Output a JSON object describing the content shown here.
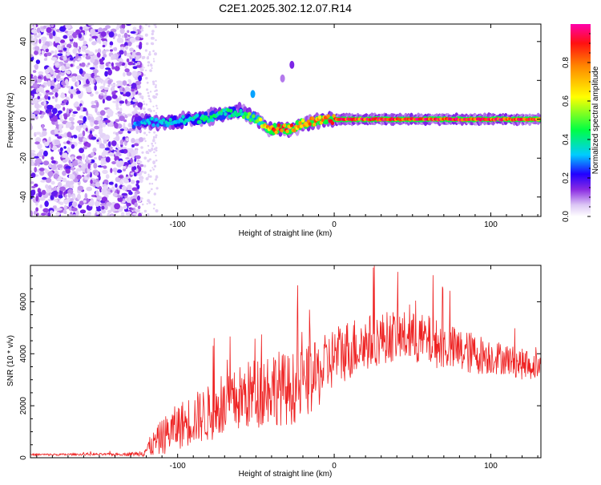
{
  "title": "C2E1.2025.302.12.07.R14",
  "chart_data": [
    {
      "type": "heatmap",
      "xlabel": "Height of straight line (km)",
      "ylabel": "Frequency (Hz)",
      "xlim": [
        -194,
        132
      ],
      "ylim": [
        -50,
        49
      ],
      "xticks": [
        -100,
        0,
        100
      ],
      "xtick_labels": [
        "-100",
        "0",
        "100"
      ],
      "yticks": [
        -40,
        -20,
        0,
        20,
        40
      ],
      "ytick_labels": [
        "-40",
        "-20",
        "0",
        "20",
        "40"
      ],
      "noise_region": {
        "x_range": [
          -194,
          -123
        ],
        "y_range": [
          -50,
          49
        ]
      },
      "spectral_ridge": {
        "description": "dominant frequency ridge vs height",
        "x": [
          -128,
          -120,
          -110,
          -100,
          -90,
          -80,
          -70,
          -60,
          -55,
          -50,
          -45,
          -40,
          -35,
          -30,
          -25,
          -20,
          -10,
          0,
          10,
          20,
          40,
          60,
          80,
          100,
          120,
          132
        ],
        "y": [
          -2,
          -1,
          -2,
          -1,
          0,
          1,
          3,
          4,
          2,
          0,
          -3,
          -5,
          -5,
          -5,
          -4,
          -2,
          -1,
          0,
          0,
          0,
          0,
          0,
          0,
          0,
          0,
          0
        ],
        "amplitude": [
          0.3,
          0.35,
          0.35,
          0.4,
          0.4,
          0.45,
          0.45,
          0.4,
          0.55,
          0.5,
          0.7,
          0.85,
          0.9,
          0.9,
          0.85,
          0.8,
          0.85,
          0.95,
          0.95,
          0.97,
          0.97,
          0.97,
          0.97,
          0.97,
          0.97,
          0.9
        ]
      },
      "isolated_features": [
        {
          "x": -27,
          "y": 28,
          "amplitude": 0.15
        },
        {
          "x": -52,
          "y": 13,
          "amplitude": 0.3
        },
        {
          "x": -33,
          "y": 21,
          "amplitude": 0.1
        }
      ],
      "colorbar": {
        "label": "Normalized spectral amplitude",
        "range": [
          0.0,
          1.0
        ],
        "ticks": [
          0.0,
          0.2,
          0.4,
          0.6,
          0.8
        ],
        "tick_labels": [
          "0.0",
          "0.2",
          "0.4",
          "0.6",
          "0.8"
        ]
      }
    },
    {
      "type": "line",
      "xlabel": "Height of straight line (km)",
      "ylabel": "SNR (10 * v/v)",
      "xlim": [
        -194,
        132
      ],
      "ylim": [
        0,
        7400
      ],
      "xticks": [
        -100,
        0,
        100
      ],
      "xtick_labels": [
        "-100",
        "0",
        "100"
      ],
      "yticks": [
        0,
        2000,
        4000,
        6000
      ],
      "ytick_labels": [
        "0",
        "2000",
        "4000",
        "6000"
      ],
      "series": [
        {
          "name": "SNR",
          "color": "#ee2222",
          "x": [
            -194,
            -180,
            -160,
            -140,
            -125,
            -120,
            -110,
            -100,
            -90,
            -80,
            -70,
            -60,
            -50,
            -40,
            -30,
            -20,
            -10,
            0,
            10,
            20,
            30,
            40,
            50,
            60,
            70,
            80,
            90,
            100,
            110,
            120,
            132
          ],
          "y": [
            120,
            120,
            130,
            130,
            150,
            300,
            800,
            1200,
            1500,
            1700,
            1900,
            2300,
            2500,
            2800,
            2600,
            2800,
            3200,
            3900,
            4200,
            4400,
            4600,
            4700,
            4600,
            4500,
            4300,
            4100,
            4000,
            3900,
            3800,
            3600,
            3500
          ],
          "noise_amplitude": [
            40,
            40,
            40,
            50,
            80,
            300,
            700,
            900,
            1000,
            1100,
            1100,
            1300,
            1400,
            1500,
            1400,
            1400,
            1300,
            1200,
            1200,
            1100,
            1000,
            1000,
            1000,
            1000,
            900,
            900,
            800,
            700,
            600,
            600,
            500
          ]
        }
      ]
    }
  ]
}
